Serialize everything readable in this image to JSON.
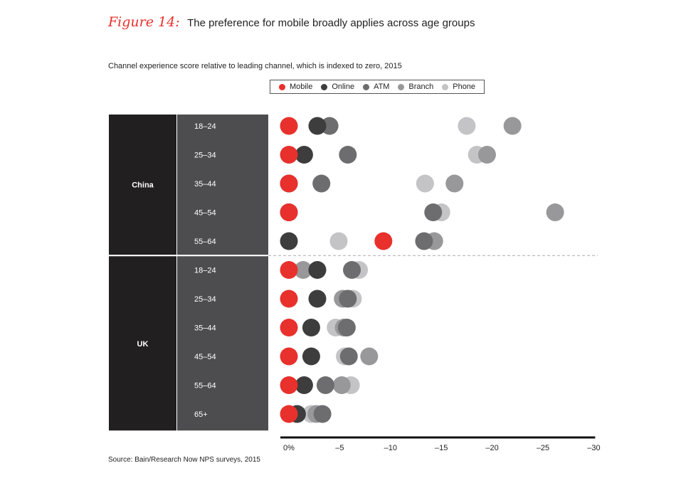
{
  "header": {
    "figure_label": "Figure 14:",
    "title": "The preference for mobile broadly applies across age groups"
  },
  "source": "Source: Bain/Research Now NPS surveys, 2015",
  "chart_data": {
    "type": "scatter",
    "subtitle": "Channel experience score relative to leading channel, which is indexed to zero, 2015",
    "x_axis": {
      "range": [
        0,
        -30
      ],
      "ticks": [
        0,
        -5,
        -10,
        -15,
        -20,
        -25,
        -30
      ],
      "tick_labels": [
        "0%",
        "–5",
        "–10",
        "–15",
        "–20",
        "–25",
        "–30"
      ]
    },
    "legend": [
      {
        "name": "Mobile",
        "color": "#e8302c"
      },
      {
        "name": "Online",
        "color": "#3d3d3d"
      },
      {
        "name": "ATM",
        "color": "#6d6d6f"
      },
      {
        "name": "Branch",
        "color": "#98989a"
      },
      {
        "name": "Phone",
        "color": "#c4c4c6"
      }
    ],
    "draw_order": [
      "Phone",
      "Branch",
      "ATM",
      "Online",
      "Mobile"
    ],
    "groups": [
      {
        "country": "China",
        "rows": [
          {
            "age": "18–24",
            "values": {
              "Mobile": 0,
              "Online": -2.8,
              "ATM": -4,
              "Branch": -22,
              "Phone": -17.5
            }
          },
          {
            "age": "25–34",
            "values": {
              "Mobile": 0,
              "Online": -1.5,
              "ATM": -5.8,
              "Branch": -19.5,
              "Phone": -18.5
            }
          },
          {
            "age": "35–44",
            "values": {
              "Mobile": 0,
              "Online": 0,
              "ATM": -3.2,
              "Branch": -16.3,
              "Phone": -13.4
            }
          },
          {
            "age": "45–54",
            "values": {
              "Mobile": 0,
              "Online": 0,
              "ATM": -14.2,
              "Branch": -26.2,
              "Phone": -15
            }
          },
          {
            "age": "55–64",
            "values": {
              "Mobile": -9.3,
              "Online": 0,
              "ATM": -13.3,
              "Branch": -14.3,
              "Phone": -4.9
            }
          }
        ]
      },
      {
        "country": "UK",
        "rows": [
          {
            "age": "18–24",
            "values": {
              "Mobile": 0,
              "Online": -2.8,
              "ATM": -6.2,
              "Branch": -1.4,
              "Phone": -6.9
            }
          },
          {
            "age": "25–34",
            "values": {
              "Mobile": 0,
              "Online": -2.8,
              "ATM": -5.8,
              "Branch": -5.3,
              "Phone": -6.3
            }
          },
          {
            "age": "35–44",
            "values": {
              "Mobile": 0,
              "Online": -2.2,
              "ATM": -5.7,
              "Branch": -5.4,
              "Phone": -4.6
            }
          },
          {
            "age": "45–54",
            "values": {
              "Mobile": 0,
              "Online": -2.2,
              "ATM": -5.9,
              "Branch": -7.9,
              "Phone": -5.5
            }
          },
          {
            "age": "55–64",
            "values": {
              "Mobile": 0,
              "Online": -1.5,
              "ATM": -3.6,
              "Branch": -5.2,
              "Phone": -6.1
            }
          },
          {
            "age": "65+",
            "values": {
              "Mobile": 0,
              "Online": -0.8,
              "ATM": -3.3,
              "Branch": -2.7,
              "Phone": -2.2
            }
          }
        ]
      }
    ]
  }
}
